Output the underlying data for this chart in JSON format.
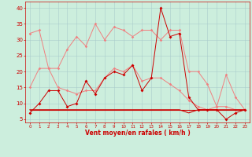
{
  "x": [
    0,
    1,
    2,
    3,
    4,
    5,
    6,
    7,
    8,
    9,
    10,
    11,
    12,
    13,
    14,
    15,
    16,
    17,
    18,
    19,
    20,
    21,
    22,
    23
  ],
  "line1": [
    32,
    33,
    21,
    21,
    27,
    31,
    28,
    35,
    30,
    34,
    33,
    31,
    33,
    33,
    30,
    33,
    33,
    20,
    20,
    16,
    9,
    19,
    12,
    8
  ],
  "line2": [
    15,
    21,
    21,
    15,
    14,
    13,
    14,
    14,
    18,
    21,
    20,
    22,
    17,
    18,
    18,
    16,
    14,
    11,
    9,
    8,
    9,
    9,
    8,
    8
  ],
  "line3": [
    7,
    10,
    14,
    14,
    9,
    10,
    17,
    13,
    18,
    20,
    19,
    22,
    14,
    18,
    40,
    31,
    32,
    12,
    8,
    8,
    8,
    5,
    7,
    8
  ],
  "line4": [
    8,
    8,
    8,
    8,
    8,
    8,
    8,
    8,
    8,
    8,
    8,
    8,
    8,
    8,
    8,
    8,
    8,
    7,
    8,
    8,
    8,
    8,
    8,
    8
  ],
  "line5": [
    8,
    8,
    8,
    8,
    8,
    8,
    8,
    8,
    8,
    8,
    8,
    8,
    8,
    8,
    8,
    8,
    8,
    8,
    8,
    8,
    8,
    8,
    8,
    8
  ],
  "color_light": "#f08080",
  "color_dark": "#cc0000",
  "bg_color": "#cceedd",
  "grid_color": "#aacccc",
  "xlabel": "Vent moyen/en rafales ( km/h )",
  "yticks": [
    5,
    10,
    15,
    20,
    25,
    30,
    35,
    40
  ],
  "xlim": [
    -0.5,
    23.5
  ],
  "ylim": [
    4,
    42
  ]
}
